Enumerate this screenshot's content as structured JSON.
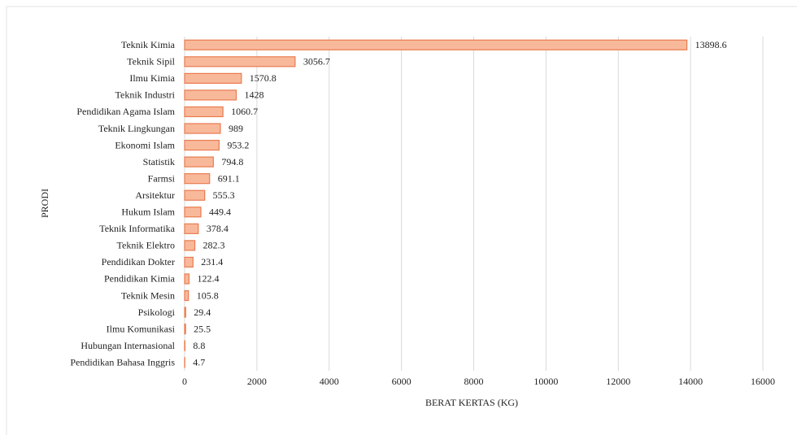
{
  "chart_data": {
    "type": "barh",
    "xlabel": "BERAT KERTAS (KG)",
    "ylabel": "PRODI",
    "categories": [
      "Teknik Kimia",
      "Teknik Sipil",
      "Ilmu Kimia",
      "Teknik Industri",
      "Pendidikan Agama Islam",
      "Teknik Lingkungan",
      "Ekonomi Islam",
      "Statistik",
      "Farmsi",
      "Arsitektur",
      "Hukum Islam",
      "Teknik Informatika",
      "Teknik Elektro",
      "Pendidikan Dokter",
      "Pendidikan Kimia",
      "Teknik Mesin",
      "Psikologi",
      "Ilmu Komunikasi",
      "Hubungan Internasional",
      "Pendidikan Bahasa Inggris"
    ],
    "values": [
      13898.6,
      3056.7,
      1570.8,
      1428,
      1060.7,
      989,
      953.2,
      794.8,
      691.1,
      555.3,
      449.4,
      378.4,
      282.3,
      231.4,
      122.4,
      105.8,
      29.4,
      25.5,
      8.8,
      4.7
    ],
    "color": "#f8b99b",
    "edgecolor": "#e97b4f",
    "xlim": [
      0,
      16000
    ],
    "xticks": [
      0,
      2000,
      4000,
      6000,
      8000,
      10000,
      12000,
      14000,
      16000
    ],
    "grid": true
  }
}
